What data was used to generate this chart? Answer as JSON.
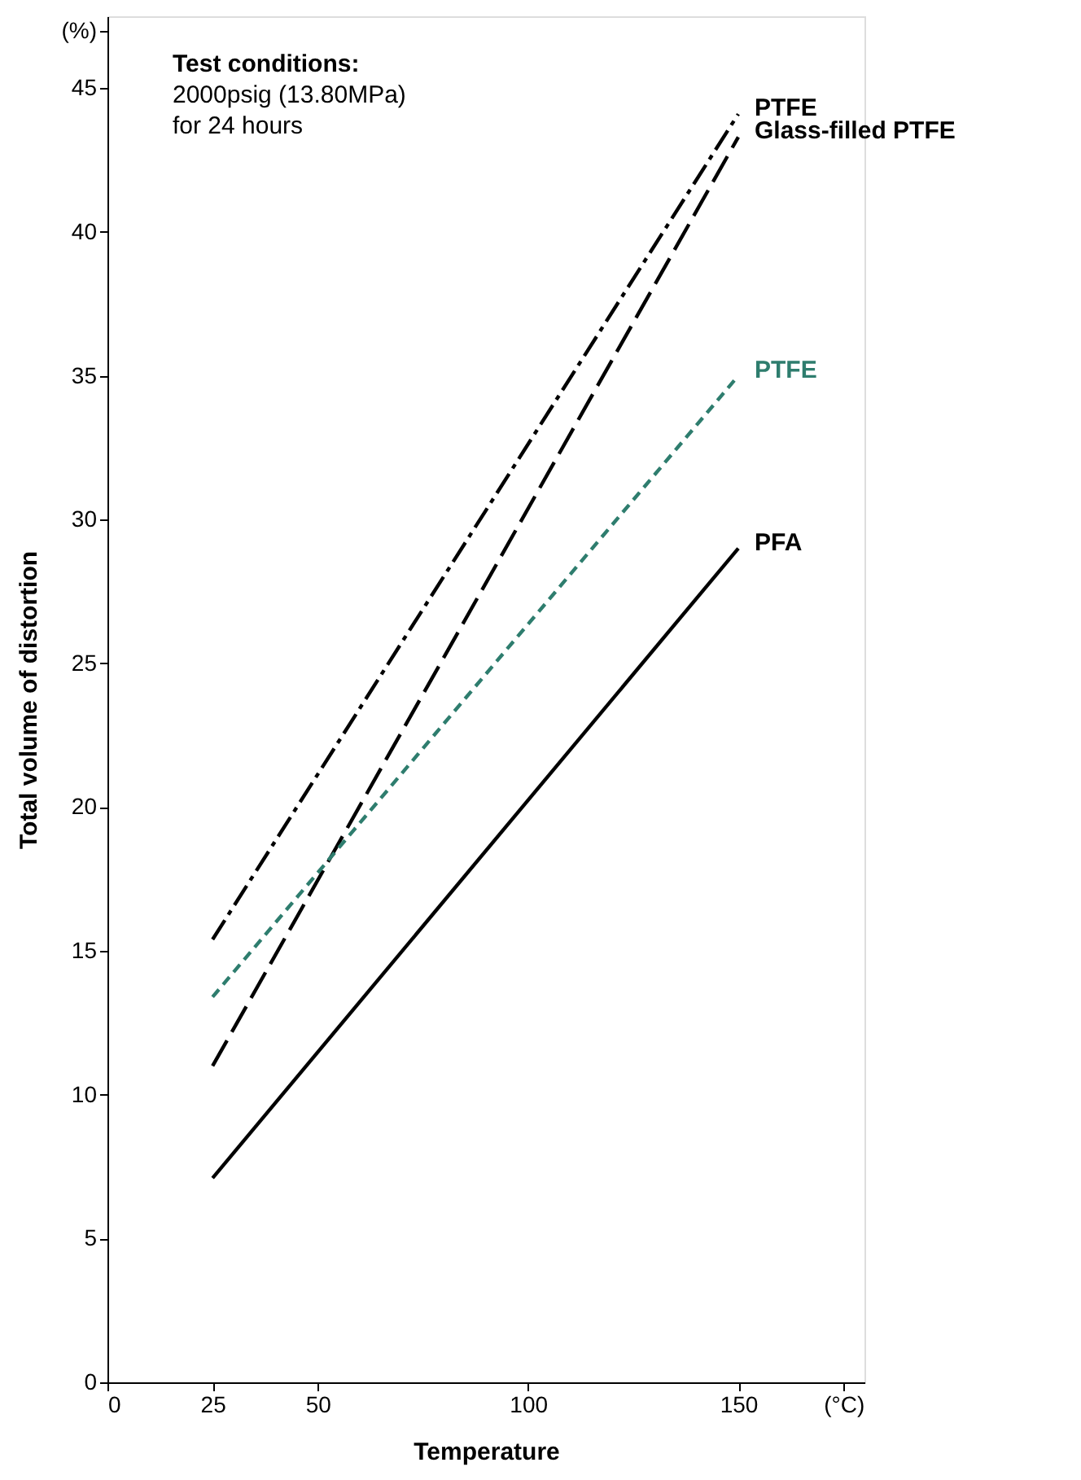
{
  "chart_data": {
    "type": "line",
    "xlabel": "Temperature",
    "ylabel": "Total volume of distortion",
    "annotations": [
      "Test conditions:",
      "2000psig (13.80MPa)",
      "for 24 hours"
    ],
    "x": [
      25,
      150
    ],
    "series": [
      {
        "name": "PTFE",
        "color": "#000000",
        "line_style": "dashdot",
        "values": [
          15.4,
          44.1
        ]
      },
      {
        "name": "Glass-filled PTFE",
        "color": "#000000",
        "line_style": "longdash",
        "values": [
          11.0,
          43.3
        ]
      },
      {
        "name": "PTFE",
        "color": "#2e7d6e",
        "line_style": "dashed",
        "values": [
          13.4,
          35.0
        ]
      },
      {
        "name": "PFA",
        "color": "#000000",
        "line_style": "solid",
        "values": [
          7.1,
          29.0
        ]
      }
    ],
    "xlim": [
      0,
      180
    ],
    "xticks": [
      0,
      25,
      50,
      100,
      150,
      {
        "value": 175,
        "label": "(°C)"
      }
    ],
    "ylim": [
      0,
      47.5
    ],
    "yticks": [
      0,
      5,
      10,
      15,
      20,
      25,
      30,
      35,
      40,
      45,
      {
        "value": 47,
        "label": "(%)"
      }
    ],
    "grid": false,
    "marker": "none"
  }
}
